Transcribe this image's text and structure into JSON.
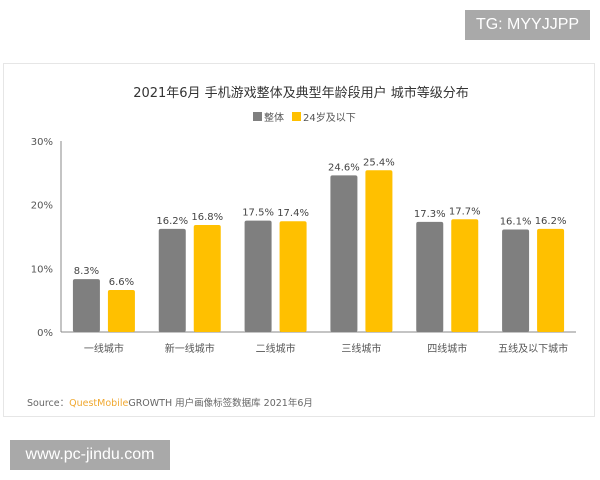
{
  "watermark_top": "TG: MYYJJPP",
  "watermark_bottom": "www.pc-jindu.com",
  "source": {
    "prefix": "Source：",
    "brand": "QuestMobile",
    "rest": "GROWTH 用户画像标签数据库 2021年6月"
  },
  "colors": {
    "overall": "#7f7f7f",
    "under24": "#ffc000",
    "brand": "#f0a830"
  },
  "chart_data": {
    "type": "bar",
    "title": "2021年6月 手机游戏整体及典型年龄段用户 城市等级分布",
    "categories": [
      "一线城市",
      "新一线城市",
      "二线城市",
      "三线城市",
      "四线城市",
      "五线及以下城市"
    ],
    "series": [
      {
        "name": "整体",
        "values": [
          8.3,
          16.2,
          17.5,
          24.6,
          17.3,
          16.1
        ]
      },
      {
        "name": "24岁及以下",
        "values": [
          6.6,
          16.8,
          17.4,
          25.4,
          17.7,
          16.2
        ]
      }
    ],
    "yticks": [
      "0%",
      "10%",
      "20%",
      "30%"
    ],
    "ylim": [
      0,
      30
    ],
    "legend": "top-center",
    "grid": false
  }
}
